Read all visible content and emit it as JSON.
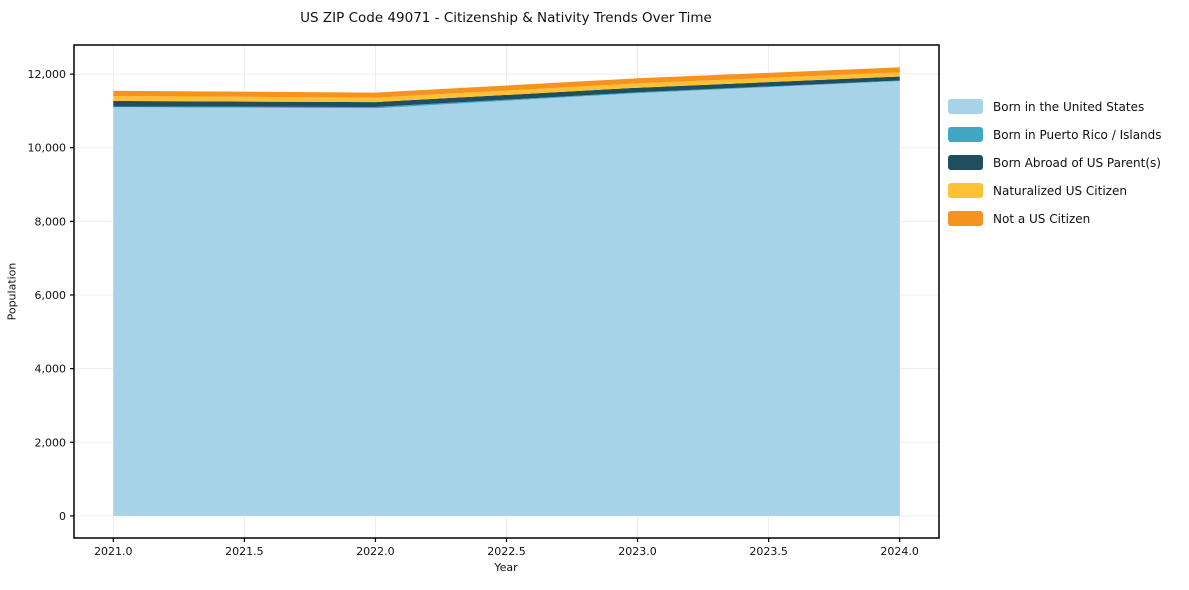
{
  "title": "US ZIP Code 49071 - Citizenship & Nativity Trends Over Time",
  "chart_data": {
    "type": "area",
    "stacked": true,
    "title": "US ZIP Code 49071 - Citizenship & Nativity Trends Over Time",
    "xlabel": "Year",
    "ylabel": "Population",
    "x": [
      2021,
      2022,
      2023,
      2024
    ],
    "series": [
      {
        "name": "Born in the United States",
        "color": "#a6d3e8",
        "values": [
          11100,
          11070,
          11480,
          11810
        ]
      },
      {
        "name": "Born in Puerto Rico / Islands",
        "color": "#41a6c4",
        "values": [
          20,
          35,
          25,
          15
        ]
      },
      {
        "name": "Born Abroad of US Parent(s)",
        "color": "#1f4e5f",
        "values": [
          150,
          135,
          125,
          110
        ]
      },
      {
        "name": "Naturalized US Citizen",
        "color": "#fdc233",
        "values": [
          135,
          120,
          118,
          112
        ]
      },
      {
        "name": "Not a US Citizen",
        "color": "#f6921e",
        "values": [
          140,
          138,
          137,
          138
        ]
      }
    ],
    "totals": [
      11545,
      11498,
      11885,
      12185
    ],
    "xlim": [
      2020.85,
      2024.15
    ],
    "ylim": [
      -600,
      12790
    ],
    "xticks": {
      "values": [
        2021.0,
        2021.5,
        2022.0,
        2022.5,
        2023.0,
        2023.5,
        2024.0
      ],
      "labels": [
        "2021.0",
        "2021.5",
        "2022.0",
        "2022.5",
        "2023.0",
        "2023.5",
        "2024.0"
      ]
    },
    "yticks": {
      "values": [
        0,
        2000,
        4000,
        6000,
        8000,
        10000,
        12000
      ],
      "labels": [
        "0",
        "2,000",
        "4,000",
        "6,000",
        "8,000",
        "10,000",
        "12,000"
      ]
    },
    "grid": true,
    "grid_color": "#ececec",
    "axis_color": "#000000",
    "tick_label_color": "#111111",
    "legend_position": "right"
  }
}
